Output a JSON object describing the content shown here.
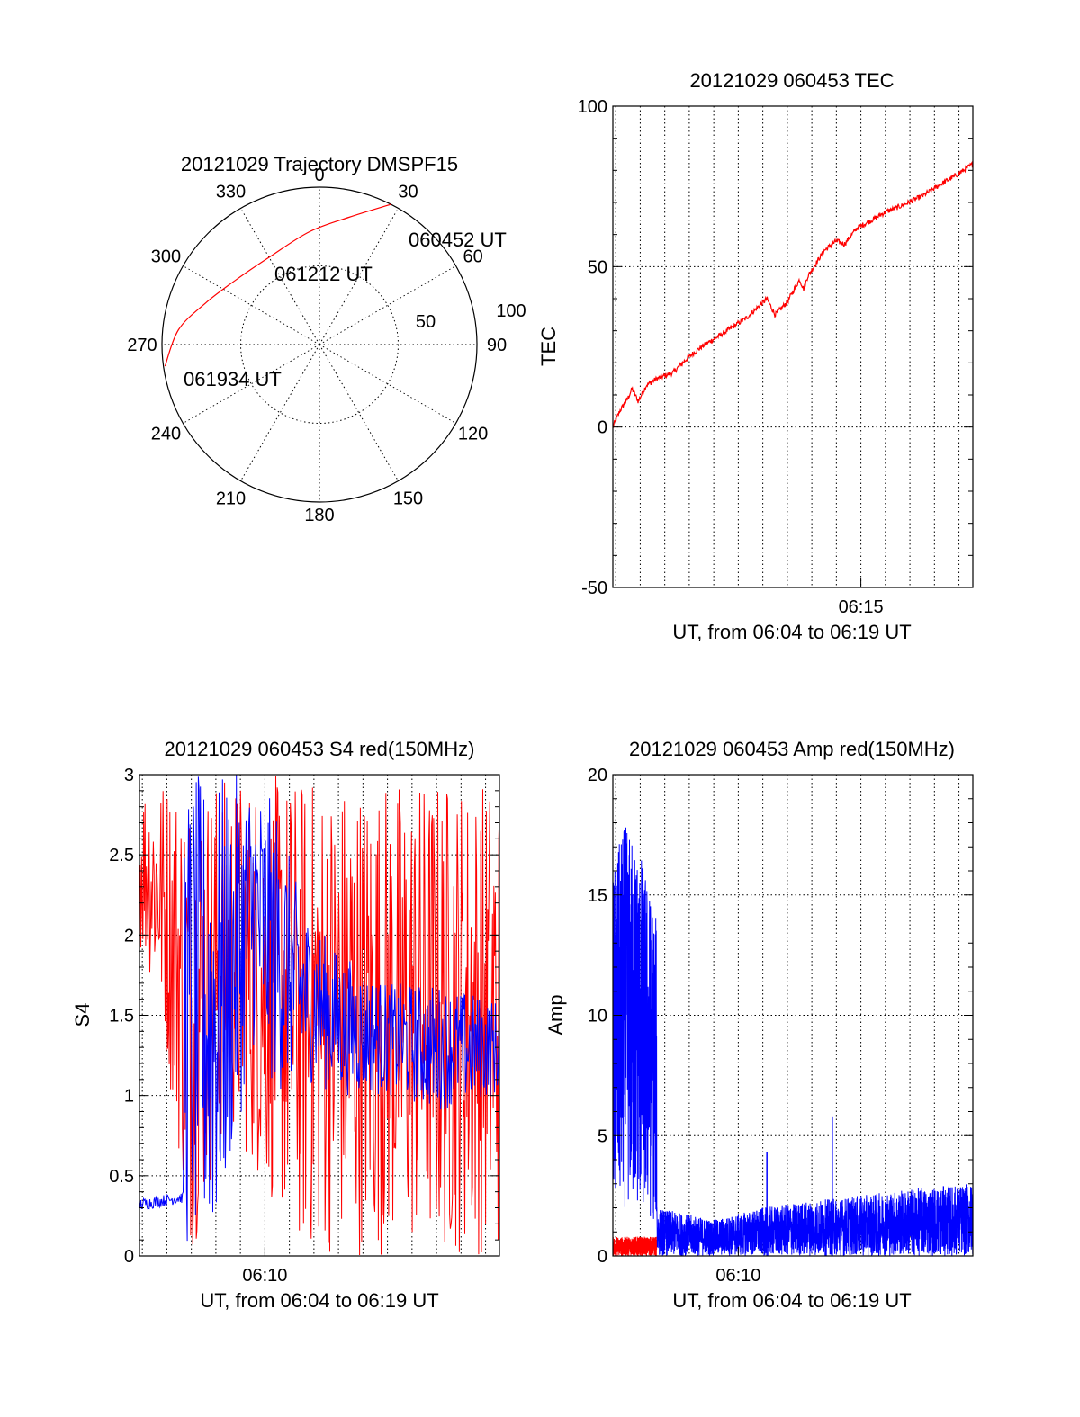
{
  "colors": {
    "red": "#ff0000",
    "blue": "#0000ff",
    "axis": "#000000"
  },
  "chart_data": [
    {
      "id": "trajectory",
      "type": "polar",
      "title": "20121029 Trajectory DMSPF15",
      "azimuth_labels": [
        "0",
        "30",
        "60",
        "90",
        "120",
        "150",
        "180",
        "210",
        "240",
        "270",
        "300",
        "330"
      ],
      "radial_labels": [
        "50",
        "100"
      ],
      "rlim": [
        0,
        100
      ],
      "series": [
        {
          "color": "red",
          "points": [
            {
              "az": 27,
              "r": 100
            },
            {
              "az": 13,
              "r": 83
            },
            {
              "az": 355,
              "r": 72
            },
            {
              "az": 330,
              "r": 64
            },
            {
              "az": 308,
              "r": 67
            },
            {
              "az": 290,
              "r": 77
            },
            {
              "az": 276,
              "r": 90
            },
            {
              "az": 262,
              "r": 99
            }
          ]
        }
      ],
      "annotations": [
        {
          "text": "060452 UT",
          "az": 27,
          "r": 100
        },
        {
          "text": "061212 UT",
          "az": 10,
          "r": 47
        },
        {
          "text": "061934 UT",
          "az": 256,
          "r": 76
        }
      ]
    },
    {
      "id": "tec",
      "type": "line",
      "title": "20121029 060453 TEC",
      "xlabel": "UT, from 06:04 to 06:19 UT",
      "ylabel": "TEC",
      "xlim": [
        "06:04:53",
        "06:19:34"
      ],
      "x_ticks": [
        "06:15"
      ],
      "ylim": [
        -50,
        100
      ],
      "y_ticks": [
        "100",
        "50",
        "0",
        "-50"
      ],
      "grid": true,
      "series": [
        {
          "color": "red",
          "x": [
            "06:04:53",
            "06:05:10",
            "06:05:30",
            "06:05:40",
            "06:05:55",
            "06:06:15",
            "06:06:40",
            "06:07:20",
            "06:08:00",
            "06:08:30",
            "06:09:20",
            "06:10:20",
            "06:11:10",
            "06:11:30",
            "06:12:00",
            "06:12:30",
            "06:12:40",
            "06:12:50",
            "06:13:30",
            "06:14:00",
            "06:14:20",
            "06:14:50",
            "06:15:20",
            "06:16:00",
            "06:16:40",
            "06:17:30",
            "06:18:20",
            "06:19:00",
            "06:19:34"
          ],
          "y": [
            0,
            5,
            9,
            12,
            8,
            13,
            15,
            17,
            22,
            25,
            29,
            34,
            40,
            35,
            39,
            46,
            43,
            47,
            55,
            58,
            57,
            62,
            64,
            67,
            69,
            72,
            76,
            79,
            82
          ]
        }
      ]
    },
    {
      "id": "s4",
      "type": "line",
      "title": "20121029 060453 S4 red(150MHz)",
      "xlabel": "UT, from 06:04 to 06:19 UT",
      "ylabel": "S4",
      "xlim": [
        "06:04:53",
        "06:19:34"
      ],
      "x_ticks": [
        "06:10"
      ],
      "ylim": [
        0,
        3
      ],
      "y_ticks": [
        "3",
        "2.5",
        "2",
        "1.5",
        "1",
        "0.5",
        "0"
      ],
      "grid": true,
      "series": [
        {
          "color": "red",
          "envelope": {
            "x": [
              "06:04:53",
              "06:05:40",
              "06:07:00",
              "06:08:30",
              "06:10:00",
              "06:11:30",
              "06:13:00",
              "06:15:00",
              "06:17:00",
              "06:19:34"
            ],
            "low": [
              1.9,
              1.6,
              0.0,
              0.8,
              0.4,
              0.0,
              0.0,
              0.0,
              0.0,
              0.0
            ],
            "high": [
              3,
              3,
              3,
              3,
              3,
              3,
              3,
              3,
              3,
              3
            ]
          }
        },
        {
          "color": "blue",
          "envelope": {
            "x": [
              "06:04:53",
              "06:06:40",
              "06:06:41",
              "06:08:00",
              "06:09:30",
              "06:10:30",
              "06:11:30",
              "06:13:00",
              "06:15:00",
              "06:17:00",
              "06:19:34"
            ],
            "low": [
              0.28,
              0.33,
              0.0,
              0.0,
              1.3,
              1.0,
              1.1,
              1.0,
              1.0,
              0.9,
              1.0
            ],
            "high": [
              0.36,
              0.4,
              3,
              3,
              3,
              2.8,
              2.2,
              1.9,
              1.7,
              1.7,
              1.6
            ]
          }
        }
      ]
    },
    {
      "id": "amp",
      "type": "line",
      "title": "20121029 060453 Amp red(150MHz)",
      "xlabel": "UT, from 06:04 to 06:19 UT",
      "ylabel": "Amp",
      "xlim": [
        "06:04:53",
        "06:19:34"
      ],
      "x_ticks": [
        "06:10"
      ],
      "ylim": [
        0,
        20
      ],
      "y_ticks": [
        "20",
        "15",
        "10",
        "5",
        "0"
      ],
      "grid": true,
      "series": [
        {
          "color": "red",
          "envelope": {
            "x": [
              "06:04:53",
              "06:06:40"
            ],
            "low": [
              0.0,
              0.0
            ],
            "high": [
              0.8,
              0.8
            ]
          }
        },
        {
          "color": "blue",
          "envelope": {
            "x": [
              "06:04:53",
              "06:05:20",
              "06:06:00",
              "06:06:40",
              "06:06:41",
              "06:09:00",
              "06:11:00",
              "06:13:00",
              "06:15:00",
              "06:17:00",
              "06:19:34"
            ],
            "low": [
              1.5,
              2.0,
              1.8,
              1.2,
              0.0,
              0.0,
              0.0,
              0.0,
              0.0,
              0.0,
              0.0
            ],
            "high": [
              16,
              18,
              17,
              14,
              2.0,
              1.5,
              2.0,
              2.3,
              2.5,
              2.8,
              3.0
            ]
          },
          "spikes": [
            {
              "x": "06:11:10",
              "y": 4.3
            },
            {
              "x": "06:13:50",
              "y": 5.8
            }
          ]
        }
      ]
    }
  ]
}
